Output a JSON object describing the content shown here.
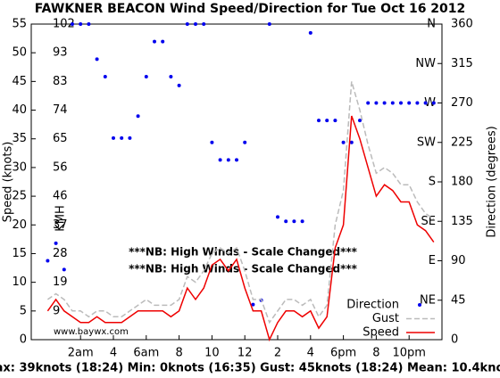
{
  "chart_data": {
    "type": "line",
    "title": "FAWKNER BEACON Wind Speed/Direction for Tue Oct 16 2012",
    "ylabel": "Speed (knots)",
    "y2label": "Direction (degrees)",
    "kmh_label": "KMH",
    "annotations": [
      "***NB: High Winds - Scale Changed***",
      "***NB: High Winds - Scale Changed***"
    ],
    "source": "www.baywx.com",
    "footer": "Max: 39knots (18:24) Min: 0knots (16:35) Gust: 45knots (18:24) Mean: 10.4knots",
    "x": [
      0,
      0.5,
      1,
      1.5,
      2,
      2.5,
      3,
      3.5,
      4,
      4.5,
      5,
      5.5,
      6,
      6.5,
      7,
      7.5,
      8,
      8.5,
      9,
      9.5,
      10,
      10.5,
      11,
      11.5,
      12,
      12.5,
      13,
      13.5,
      14,
      14.5,
      15,
      15.5,
      16,
      16.5,
      17,
      17.5,
      18,
      18.5,
      19,
      19.5,
      20,
      20.5,
      21,
      21.5,
      22,
      22.5,
      23,
      23.5
    ],
    "series": [
      {
        "name": "Direction",
        "color": "#0000ee",
        "style": "dots",
        "axis": "y2",
        "values": [
          90,
          110,
          80,
          360,
          360,
          360,
          320,
          300,
          230,
          230,
          230,
          255,
          300,
          340,
          340,
          300,
          290,
          360,
          360,
          360,
          225,
          205,
          205,
          205,
          225,
          40,
          45,
          360,
          140,
          135,
          135,
          135,
          350,
          250,
          250,
          250,
          225,
          225,
          250,
          270,
          270,
          270,
          270,
          270,
          270,
          270,
          270,
          270
        ]
      },
      {
        "name": "Gust",
        "color": "#bbbbbb",
        "style": "dashed",
        "values": [
          7,
          8,
          7,
          5,
          5,
          4,
          5,
          5,
          4,
          4,
          5,
          6,
          7,
          6,
          6,
          6,
          7,
          11,
          10,
          12,
          15,
          16,
          15,
          16,
          12,
          7,
          7,
          3,
          5,
          7,
          7,
          6,
          7,
          4,
          6,
          20,
          26,
          45,
          40,
          34,
          29,
          30,
          29,
          27,
          27,
          24,
          22,
          21
        ]
      },
      {
        "name": "Speed",
        "color": "#ee0000",
        "style": "solid",
        "values": [
          5,
          7,
          5,
          4,
          3,
          3,
          4,
          3,
          3,
          3,
          4,
          5,
          5,
          5,
          5,
          4,
          5,
          9,
          7,
          9,
          13,
          14,
          12,
          14,
          9,
          5,
          5,
          0,
          3,
          5,
          5,
          4,
          5,
          2,
          4,
          16,
          20,
          39,
          35,
          30,
          25,
          27,
          26,
          24,
          24,
          20,
          19,
          17
        ]
      }
    ],
    "xlim": [
      -1,
      24
    ],
    "xticks": [
      {
        "value": 2,
        "label": "2am"
      },
      4,
      {
        "value": 6,
        "label": "6am"
      },
      8,
      10,
      12,
      {
        "value": 14,
        "label": "2"
      },
      {
        "value": 16,
        "label": "4"
      },
      {
        "value": 18,
        "label": "6pm"
      },
      {
        "value": 20,
        "label": "8"
      },
      {
        "value": 22,
        "label": "10pm"
      }
    ],
    "ylim": [
      0,
      55
    ],
    "yticks": [
      0,
      5,
      10,
      15,
      20,
      25,
      30,
      35,
      40,
      45,
      50,
      55
    ],
    "y2lim": [
      0,
      360
    ],
    "y2ticks": [
      0,
      45,
      90,
      135,
      180,
      225,
      270,
      315,
      360
    ],
    "kmh_ticks": [
      {
        "value": 5,
        "label": "9"
      },
      {
        "value": 10,
        "label": "19"
      },
      {
        "value": 15,
        "label": "28"
      },
      {
        "value": 20,
        "label": "37"
      },
      {
        "value": 25,
        "label": "46"
      },
      {
        "value": 30,
        "label": "56"
      },
      {
        "value": 35,
        "label": "65"
      },
      {
        "value": 40,
        "label": "74"
      },
      {
        "value": 45,
        "label": "83"
      },
      {
        "value": 50,
        "label": "93"
      },
      {
        "value": 55,
        "label": "102"
      }
    ],
    "compass_ticks": [
      {
        "value": 45,
        "label": "NE"
      },
      {
        "value": 90,
        "label": "E"
      },
      {
        "value": 135,
        "label": "SE"
      },
      {
        "value": 180,
        "label": "S"
      },
      {
        "value": 225,
        "label": "SW"
      },
      {
        "value": 270,
        "label": "W"
      },
      {
        "value": 315,
        "label": "NW"
      },
      {
        "value": 360,
        "label": "N"
      }
    ],
    "legend": "lower right"
  }
}
